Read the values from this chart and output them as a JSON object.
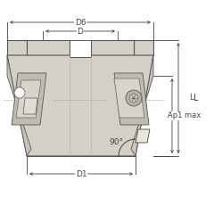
{
  "bg_color": "#ffffff",
  "body_fill": "#d4d0c8",
  "body_fill2": "#c8c4bc",
  "body_stroke": "#555555",
  "dim_color": "#444444",
  "line_color": "#666666",
  "labels": {
    "D6": "D6",
    "D": "D",
    "D1": "D1",
    "L": "L",
    "Ap1_max": "Ap1 max",
    "angle": "90°"
  },
  "dim_lw": 0.6,
  "body_lw": 0.8,
  "font_size": 6.5
}
